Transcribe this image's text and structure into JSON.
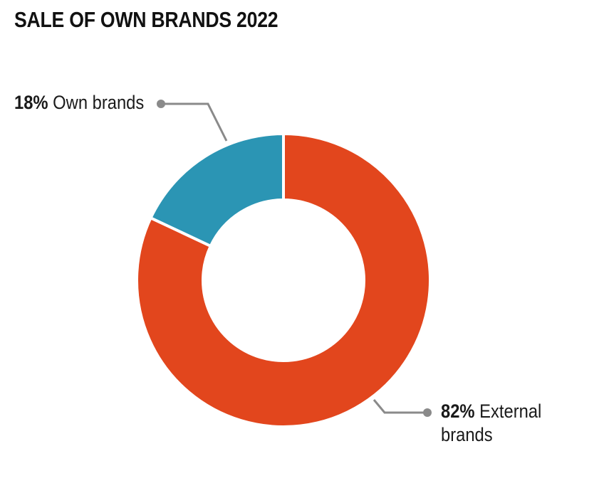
{
  "title": "SALE OF OWN BRANDS 2022",
  "chart_data": {
    "type": "pie",
    "variant": "donut",
    "title": "SALE OF OWN BRANDS 2022",
    "slices": [
      {
        "label": "External brands",
        "value": 82,
        "value_label": "82%",
        "name_lines": [
          "External",
          "brands"
        ],
        "color": "#E2461D"
      },
      {
        "label": "Own brands",
        "value": 18,
        "value_label": "18%",
        "name_lines": [
          "Own brands"
        ],
        "color": "#2B95B4"
      }
    ],
    "start_angle": "12 o'clock",
    "direction": "clockwise",
    "legend": "callout labels with leader lines"
  }
}
